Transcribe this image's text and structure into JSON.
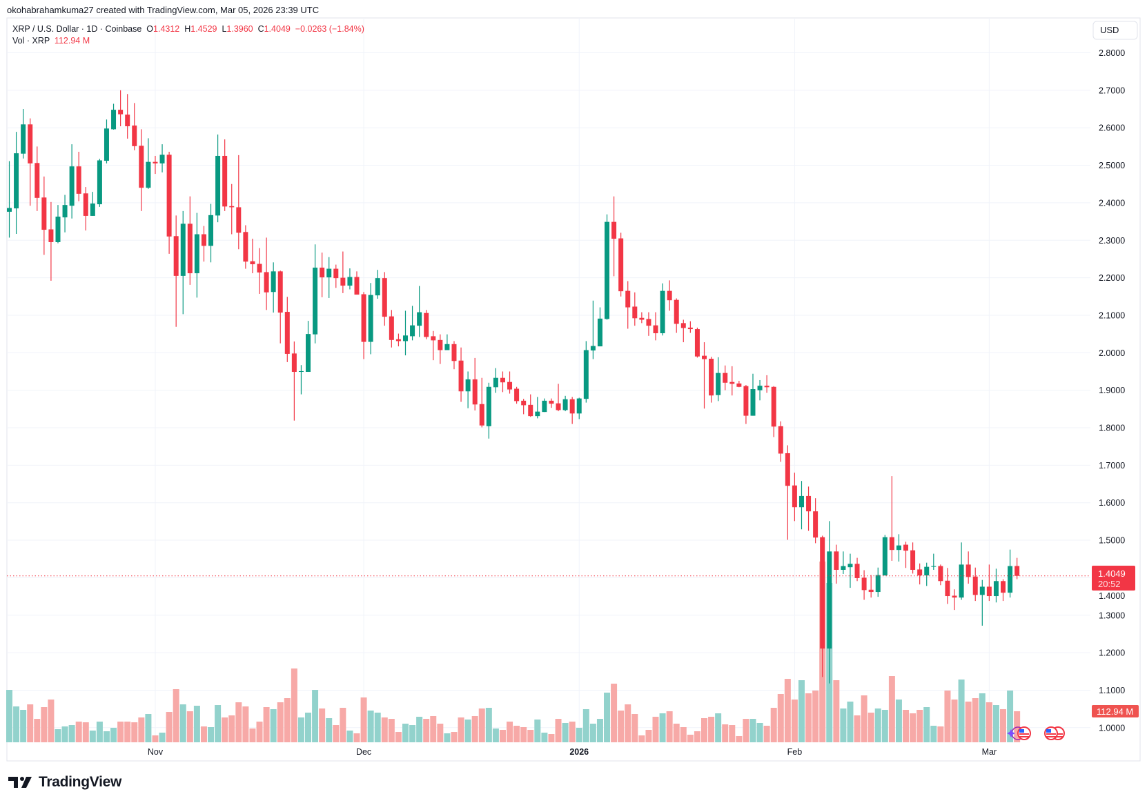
{
  "caption": "okohabrahamkuma27 created with TradingView.com, Mar 05, 2026 23:39 UTC",
  "legend": {
    "symbol": "XRP / U.S. Dollar · 1D · Coinbase",
    "open_label": "O",
    "open": "1.4312",
    "high_label": "H",
    "high": "1.4529",
    "low_label": "L",
    "low": "1.3960",
    "close_label": "C",
    "close": "1.4049",
    "change": "−0.0263 (−1.84%)",
    "vol_label": "Vol · XRP",
    "vol_value": "112.94 M"
  },
  "currency_button": "USD",
  "price_tag": {
    "price": "1.4049",
    "countdown": "20:52"
  },
  "volume_tag": "112.94 M",
  "logo": "TradingView",
  "icons": [
    "ai-sparkle-icon",
    "us-flag-event-icon"
  ],
  "colors": {
    "up": "#089981",
    "down": "#f23645",
    "vol_up": "#92d2cc",
    "vol_down": "#f7a9a7",
    "grid": "#f0f3fa"
  },
  "chart_data": {
    "type": "candlestick",
    "title": "XRP / U.S. Dollar · 1D · Coinbase",
    "first_date": "2025-10-11",
    "last_date": "2026-03-05",
    "ylim": [
      0.98,
      2.82
    ],
    "y_ticks": [
      "1.0000",
      "1.1000",
      "1.2000",
      "1.3000",
      "1.4000",
      "1.5000",
      "1.6000",
      "1.7000",
      "1.8000",
      "1.9000",
      "2.0000",
      "2.1000",
      "2.2000",
      "2.3000",
      "2.4000",
      "2.5000",
      "2.6000",
      "2.7000",
      "2.8000"
    ],
    "x_ticks": [
      {
        "label": "Nov",
        "day": 21,
        "bold": false
      },
      {
        "label": "Dec",
        "day": 51,
        "bold": false
      },
      {
        "label": "2026",
        "day": 82,
        "bold": true
      },
      {
        "label": "Feb",
        "day": 113,
        "bold": false
      },
      {
        "label": "Mar",
        "day": 141,
        "bold": false
      }
    ],
    "ohlc_fields": [
      "open",
      "high",
      "low",
      "close"
    ],
    "ohlc": [
      [
        2.376,
        2.511,
        2.307,
        2.386
      ],
      [
        2.385,
        2.589,
        2.317,
        2.532
      ],
      [
        2.531,
        2.65,
        2.518,
        2.609
      ],
      [
        2.609,
        2.625,
        2.392,
        2.505
      ],
      [
        2.506,
        2.55,
        2.378,
        2.413
      ],
      [
        2.414,
        2.47,
        2.261,
        2.328
      ],
      [
        2.329,
        2.402,
        2.192,
        2.295
      ],
      [
        2.295,
        2.394,
        2.292,
        2.363
      ],
      [
        2.361,
        2.421,
        2.321,
        2.394
      ],
      [
        2.392,
        2.556,
        2.358,
        2.497
      ],
      [
        2.497,
        2.536,
        2.404,
        2.424
      ],
      [
        2.425,
        2.442,
        2.326,
        2.365
      ],
      [
        2.365,
        2.429,
        2.365,
        2.398
      ],
      [
        2.396,
        2.517,
        2.389,
        2.513
      ],
      [
        2.512,
        2.622,
        2.505,
        2.598
      ],
      [
        2.596,
        2.664,
        2.595,
        2.648
      ],
      [
        2.648,
        2.7,
        2.604,
        2.636
      ],
      [
        2.635,
        2.69,
        2.571,
        2.604
      ],
      [
        2.606,
        2.666,
        2.54,
        2.551
      ],
      [
        2.552,
        2.596,
        2.378,
        2.44
      ],
      [
        2.44,
        2.572,
        2.437,
        2.509
      ],
      [
        2.509,
        2.525,
        2.477,
        2.505
      ],
      [
        2.505,
        2.556,
        2.481,
        2.528
      ],
      [
        2.528,
        2.536,
        2.264,
        2.31
      ],
      [
        2.311,
        2.366,
        2.069,
        2.205
      ],
      [
        2.205,
        2.378,
        2.103,
        2.344
      ],
      [
        2.344,
        2.417,
        2.181,
        2.212
      ],
      [
        2.212,
        2.373,
        2.147,
        2.316
      ],
      [
        2.316,
        2.338,
        2.243,
        2.285
      ],
      [
        2.285,
        2.397,
        2.241,
        2.367
      ],
      [
        2.366,
        2.582,
        2.348,
        2.525
      ],
      [
        2.525,
        2.569,
        2.378,
        2.39
      ],
      [
        2.391,
        2.45,
        2.316,
        2.388
      ],
      [
        2.388,
        2.527,
        2.276,
        2.32
      ],
      [
        2.322,
        2.34,
        2.224,
        2.243
      ],
      [
        2.244,
        2.304,
        2.212,
        2.236
      ],
      [
        2.237,
        2.279,
        2.157,
        2.214
      ],
      [
        2.215,
        2.307,
        2.114,
        2.161
      ],
      [
        2.162,
        2.241,
        2.107,
        2.217
      ],
      [
        2.217,
        2.219,
        2.025,
        2.107
      ],
      [
        2.109,
        2.149,
        1.975,
        1.997
      ],
      [
        1.998,
        2.03,
        1.819,
        1.949
      ],
      [
        1.949,
        1.967,
        1.889,
        1.951
      ],
      [
        1.949,
        2.085,
        1.949,
        2.05
      ],
      [
        2.049,
        2.289,
        2.025,
        2.227
      ],
      [
        2.227,
        2.267,
        2.148,
        2.201
      ],
      [
        2.201,
        2.255,
        2.146,
        2.224
      ],
      [
        2.224,
        2.235,
        2.173,
        2.199
      ],
      [
        2.2,
        2.27,
        2.159,
        2.179
      ],
      [
        2.179,
        2.225,
        2.169,
        2.202
      ],
      [
        2.202,
        2.217,
        2.155,
        2.155
      ],
      [
        2.156,
        2.162,
        1.983,
        2.029
      ],
      [
        2.029,
        2.186,
        1.996,
        2.154
      ],
      [
        2.153,
        2.221,
        2.144,
        2.199
      ],
      [
        2.199,
        2.215,
        2.072,
        2.096
      ],
      [
        2.097,
        2.114,
        2.014,
        2.034
      ],
      [
        2.036,
        2.051,
        2.017,
        2.031
      ],
      [
        2.031,
        2.112,
        1.993,
        2.046
      ],
      [
        2.044,
        2.125,
        2.033,
        2.073
      ],
      [
        2.072,
        2.178,
        2.042,
        2.108
      ],
      [
        2.106,
        2.114,
        2.036,
        2.042
      ],
      [
        2.044,
        2.058,
        1.98,
        2.033
      ],
      [
        2.034,
        2.049,
        1.97,
        2.007
      ],
      [
        2.007,
        2.049,
        2.007,
        2.023
      ],
      [
        2.023,
        2.031,
        1.956,
        1.978
      ],
      [
        1.979,
        2.014,
        1.869,
        1.897
      ],
      [
        1.897,
        1.95,
        1.852,
        1.929
      ],
      [
        1.929,
        1.986,
        1.846,
        1.862
      ],
      [
        1.863,
        1.933,
        1.801,
        1.806
      ],
      [
        1.804,
        1.92,
        1.771,
        1.909
      ],
      [
        1.908,
        1.959,
        1.893,
        1.933
      ],
      [
        1.933,
        1.95,
        1.895,
        1.921
      ],
      [
        1.922,
        1.95,
        1.891,
        1.902
      ],
      [
        1.904,
        1.909,
        1.864,
        1.871
      ],
      [
        1.872,
        1.877,
        1.836,
        1.86
      ],
      [
        1.861,
        1.889,
        1.829,
        1.831
      ],
      [
        1.831,
        1.882,
        1.825,
        1.843
      ],
      [
        1.842,
        1.878,
        1.842,
        1.872
      ],
      [
        1.872,
        1.878,
        1.853,
        1.864
      ],
      [
        1.865,
        1.917,
        1.844,
        1.847
      ],
      [
        1.847,
        1.885,
        1.844,
        1.876
      ],
      [
        1.876,
        1.882,
        1.81,
        1.838
      ],
      [
        1.838,
        1.88,
        1.823,
        1.878
      ],
      [
        1.877,
        2.031,
        1.867,
        2.007
      ],
      [
        2.006,
        2.139,
        1.983,
        2.018
      ],
      [
        2.017,
        2.121,
        2.017,
        2.091
      ],
      [
        2.09,
        2.369,
        2.088,
        2.349
      ],
      [
        2.349,
        2.417,
        2.204,
        2.304
      ],
      [
        2.305,
        2.32,
        2.15,
        2.164
      ],
      [
        2.165,
        2.191,
        2.064,
        2.121
      ],
      [
        2.123,
        2.161,
        2.072,
        2.092
      ],
      [
        2.093,
        2.108,
        2.079,
        2.088
      ],
      [
        2.09,
        2.108,
        2.045,
        2.072
      ],
      [
        2.073,
        2.108,
        2.033,
        2.052
      ],
      [
        2.052,
        2.185,
        2.046,
        2.165
      ],
      [
        2.165,
        2.193,
        2.112,
        2.14
      ],
      [
        2.141,
        2.145,
        2.053,
        2.077
      ],
      [
        2.079,
        2.088,
        2.028,
        2.066
      ],
      [
        2.067,
        2.084,
        2.053,
        2.063
      ],
      [
        2.063,
        2.067,
        1.987,
        1.99
      ],
      [
        1.992,
        2.028,
        1.851,
        1.983
      ],
      [
        1.984,
        1.989,
        1.867,
        1.886
      ],
      [
        1.887,
        1.988,
        1.871,
        1.946
      ],
      [
        1.946,
        1.966,
        1.9,
        1.92
      ],
      [
        1.922,
        1.964,
        1.886,
        1.917
      ],
      [
        1.918,
        1.925,
        1.908,
        1.909
      ],
      [
        1.911,
        1.914,
        1.81,
        1.832
      ],
      [
        1.832,
        1.944,
        1.832,
        1.903
      ],
      [
        1.9,
        1.927,
        1.873,
        1.912
      ],
      [
        1.912,
        1.94,
        1.893,
        1.908
      ],
      [
        1.909,
        1.911,
        1.775,
        1.803
      ],
      [
        1.804,
        1.817,
        1.709,
        1.731
      ],
      [
        1.732,
        1.753,
        1.501,
        1.645
      ],
      [
        1.646,
        1.68,
        1.551,
        1.588
      ],
      [
        1.588,
        1.658,
        1.529,
        1.618
      ],
      [
        1.618,
        1.643,
        1.525,
        1.577
      ],
      [
        1.577,
        1.612,
        1.492,
        1.507
      ],
      [
        1.508,
        1.512,
        1.135,
        1.211
      ],
      [
        1.211,
        1.551,
        1.118,
        1.47
      ],
      [
        1.47,
        1.488,
        1.384,
        1.421
      ],
      [
        1.421,
        1.47,
        1.41,
        1.431
      ],
      [
        1.428,
        1.464,
        1.373,
        1.437
      ],
      [
        1.437,
        1.453,
        1.391,
        1.399
      ],
      [
        1.4,
        1.42,
        1.341,
        1.367
      ],
      [
        1.368,
        1.407,
        1.347,
        1.362
      ],
      [
        1.362,
        1.427,
        1.349,
        1.407
      ],
      [
        1.406,
        1.514,
        1.406,
        1.508
      ],
      [
        1.508,
        1.671,
        1.445,
        1.474
      ],
      [
        1.474,
        1.516,
        1.443,
        1.486
      ],
      [
        1.488,
        1.496,
        1.426,
        1.472
      ],
      [
        1.473,
        1.494,
        1.411,
        1.421
      ],
      [
        1.422,
        1.438,
        1.382,
        1.406
      ],
      [
        1.406,
        1.44,
        1.378,
        1.429
      ],
      [
        1.429,
        1.464,
        1.421,
        1.431
      ],
      [
        1.431,
        1.435,
        1.38,
        1.391
      ],
      [
        1.392,
        1.426,
        1.33,
        1.351
      ],
      [
        1.352,
        1.369,
        1.314,
        1.347
      ],
      [
        1.347,
        1.494,
        1.341,
        1.435
      ],
      [
        1.435,
        1.47,
        1.384,
        1.402
      ],
      [
        1.403,
        1.427,
        1.338,
        1.354
      ],
      [
        1.354,
        1.394,
        1.272,
        1.376
      ],
      [
        1.376,
        1.435,
        1.338,
        1.351
      ],
      [
        1.351,
        1.424,
        1.334,
        1.391
      ],
      [
        1.391,
        1.396,
        1.338,
        1.36
      ],
      [
        1.36,
        1.475,
        1.347,
        1.431
      ],
      [
        1.4312,
        1.4529,
        1.396,
        1.4049
      ]
    ],
    "volume_unit": "M XRP",
    "volume": [
      190.7,
      130.5,
      118.0,
      138.0,
      85.3,
      128.0,
      155.6,
      47.7,
      57.7,
      62.7,
      75.3,
      72.8,
      42.7,
      75.3,
      40.2,
      52.7,
      75.3,
      75.3,
      72.8,
      90.4,
      102.9,
      25.1,
      35.1,
      110.4,
      193.3,
      138.0,
      112.9,
      133.0,
      57.7,
      55.2,
      135.5,
      90.4,
      97.9,
      145.6,
      130.5,
      50.2,
      75.3,
      128.0,
      120.5,
      145.6,
      160.6,
      268.5,
      90.4,
      107.9,
      190.7,
      123.0,
      87.8,
      62.7,
      125.5,
      42.7,
      32.6,
      163.1,
      115.5,
      107.9,
      90.4,
      85.3,
      37.6,
      67.8,
      62.7,
      92.9,
      85.3,
      95.4,
      67.8,
      32.6,
      37.6,
      90.4,
      82.8,
      95.4,
      123.0,
      125.5,
      50.2,
      45.2,
      75.3,
      60.2,
      55.2,
      45.2,
      82.8,
      35.1,
      30.1,
      85.3,
      70.3,
      75.3,
      52.7,
      120.5,
      67.8,
      85.3,
      180.7,
      213.3,
      115.5,
      138.0,
      102.9,
      25.1,
      45.2,
      92.9,
      105.4,
      112.9,
      67.8,
      55.2,
      27.6,
      40.2,
      87.8,
      92.9,
      105.4,
      65.3,
      62.7,
      22.6,
      85.3,
      85.3,
      70.3,
      60.2,
      125.5,
      175.7,
      230.9,
      155.6,
      225.9,
      178.2,
      188.2,
      657.6,
      579.8,
      225.9,
      123.0,
      148.1,
      97.9,
      170.7,
      107.9,
      123.0,
      118.0,
      240.9,
      155.6,
      118.0,
      105.4,
      118.0,
      128.0,
      60.2,
      57.7,
      188.2,
      155.6,
      228.4,
      148.1,
      160.6,
      178.2,
      145.6,
      135.5,
      120.5,
      188.2,
      112.94
    ],
    "last_price": 1.4049
  }
}
